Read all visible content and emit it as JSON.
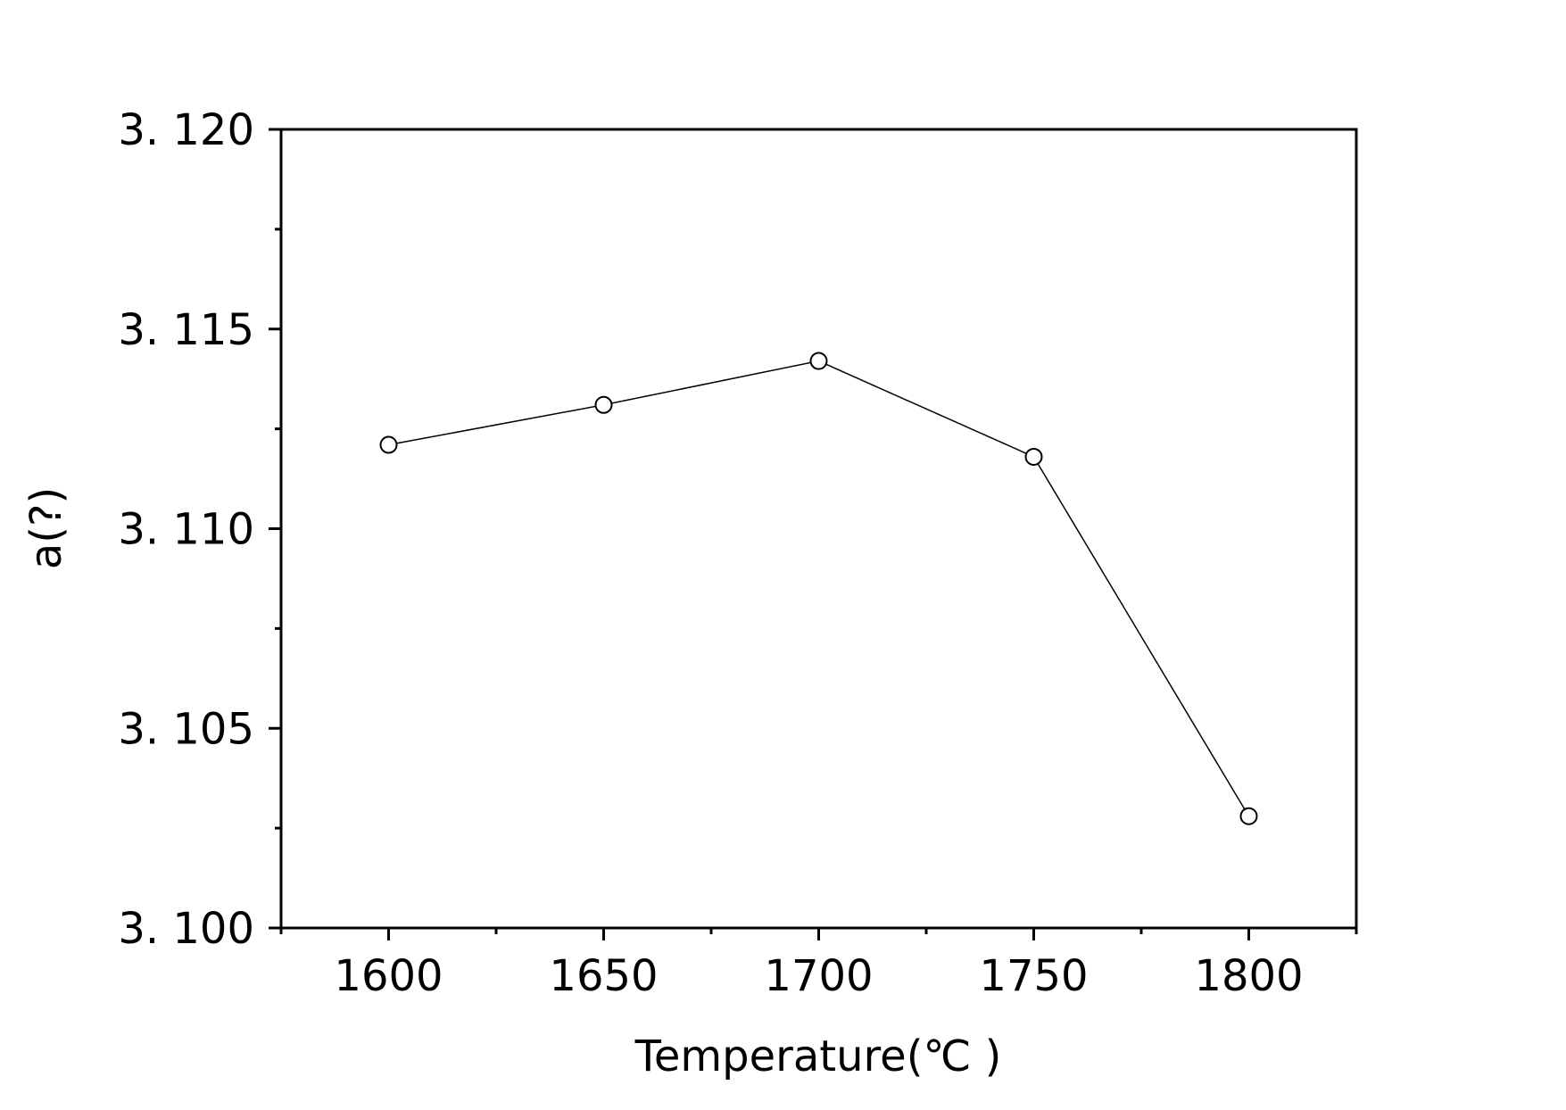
{
  "chart_data": {
    "type": "line",
    "xlabel": "Temperature(℃  )",
    "ylabel": "a(?)",
    "x": [
      1600,
      1650,
      1700,
      1750,
      1800
    ],
    "series": [
      {
        "values": [
          3.1121,
          3.1131,
          3.1142,
          3.1118,
          3.1028
        ],
        "marker": "open-circle",
        "color": "#000000"
      }
    ],
    "xlim": [
      1575,
      1825
    ],
    "ylim": [
      3.1,
      3.12
    ],
    "xticks": [
      1600,
      1650,
      1700,
      1750,
      1800
    ],
    "xtick_labels": [
      "1600",
      "1650",
      "1700",
      "1750",
      "1800"
    ],
    "yticks": [
      3.1,
      3.105,
      3.11,
      3.115,
      3.12
    ],
    "ytick_labels": [
      "3. 100",
      "3. 105",
      "3. 110",
      "3. 115",
      "3. 120"
    ],
    "grid": false,
    "legend": "none"
  }
}
